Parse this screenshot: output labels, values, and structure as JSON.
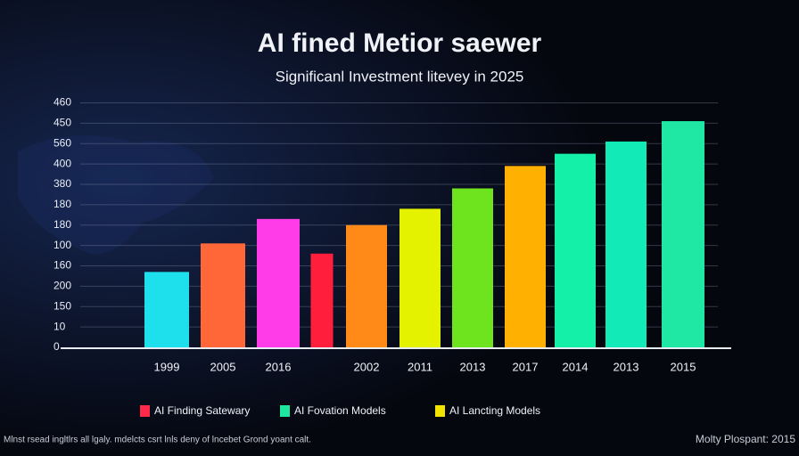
{
  "chart_data": {
    "type": "bar",
    "title": "AI fined Metior saewer",
    "subtitle": "Significanl Investment litevey in 2025",
    "categories": [
      "1999",
      "2005",
      "2016",
      null,
      "2002",
      "2011",
      "2013",
      "2017",
      "2014",
      "2013",
      "2015"
    ],
    "values": [
      3.7,
      5.1,
      6.3,
      4.6,
      6.0,
      6.8,
      7.8,
      8.9,
      9.5,
      10.1,
      11.1
    ],
    "colors": [
      "#1ee0ec",
      "#ff6638",
      "#ff3ce8",
      "#ff1f3c",
      "#ff8a18",
      "#e4f200",
      "#6ee41e",
      "#ffb000",
      "#14f0a8",
      "#12eab8",
      "#1ee8a4"
    ],
    "ylim": [
      0,
      12.5
    ],
    "yticks": [
      {
        "value": 0,
        "label": "0"
      },
      {
        "value": 1,
        "label": "10"
      },
      {
        "value": 2,
        "label": "150"
      },
      {
        "value": 3,
        "label": "200"
      },
      {
        "value": 4,
        "label": "160"
      },
      {
        "value": 5,
        "label": "100"
      },
      {
        "value": 6,
        "label": "180"
      },
      {
        "value": 7,
        "label": "180"
      },
      {
        "value": 8,
        "label": "380"
      },
      {
        "value": 9,
        "label": "400"
      },
      {
        "value": 10,
        "label": "560"
      },
      {
        "value": 11,
        "label": "450"
      },
      {
        "value": 12,
        "label": "460"
      }
    ],
    "grid": true,
    "legend": [
      {
        "name": "AI Finding Satewary",
        "color": "#ff2a4a"
      },
      {
        "name": "AI Fovation Models",
        "color": "#1ee8a0"
      },
      {
        "name": "AI Lancting Models",
        "color": "#f2e400"
      }
    ]
  },
  "footer": {
    "note": "Mlnst rsead ingltlrs all lgaly. mdelcts csrt lnls deny of lncebet Grond yoant calt.",
    "source": "Molty Plospant: 2015"
  }
}
